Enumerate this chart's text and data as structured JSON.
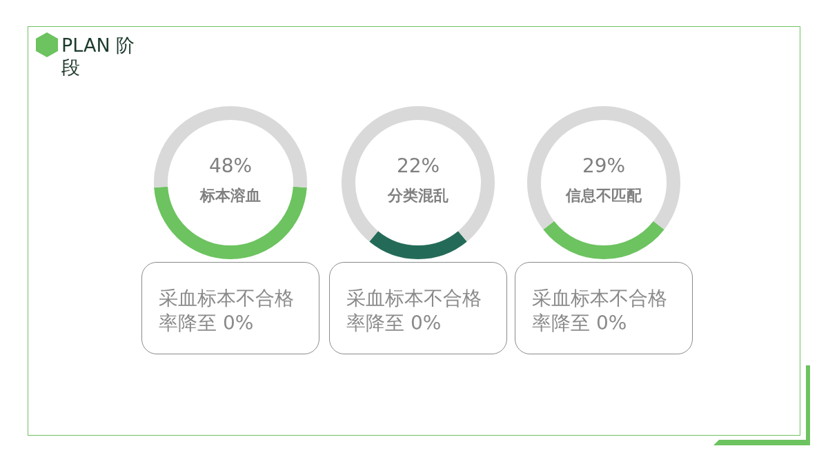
{
  "chart_data": [
    {
      "type": "donut",
      "title": "PLAN 阶段",
      "categories": [
        "标本溶血",
        null
      ],
      "values": [
        48,
        52
      ],
      "colors": [
        "#6cc35f",
        "#d9d9d9"
      ],
      "value_labels": [
        "48%",
        null
      ],
      "legend": false,
      "annotations": [
        "采血标本不合格率降至 0%"
      ]
    },
    {
      "type": "donut",
      "categories": [
        "分类混乱",
        null
      ],
      "values": [
        22,
        78
      ],
      "colors": [
        "#236b58",
        "#d9d9d9"
      ],
      "value_labels": [
        "22%",
        null
      ],
      "legend": false,
      "annotations": [
        "采血标本不合格率降至 0%"
      ]
    },
    {
      "type": "donut",
      "categories": [
        "信息不匹配",
        null
      ],
      "values": [
        29,
        71
      ],
      "colors": [
        "#6cc35f",
        "#d9d9d9"
      ],
      "value_labels": [
        "29%",
        null
      ],
      "legend": false,
      "annotations": [
        "采血标本不合格率降至 0%"
      ]
    }
  ]
}
